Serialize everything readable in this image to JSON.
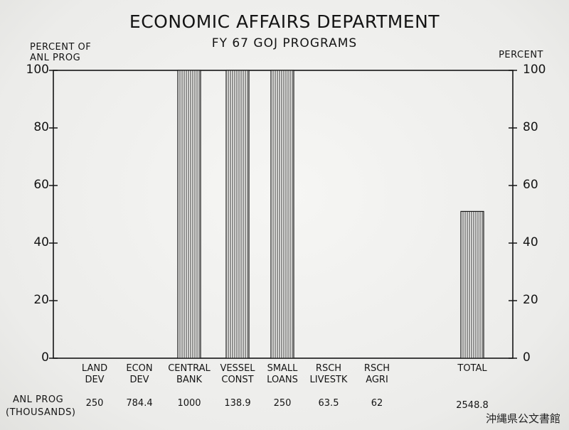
{
  "chart_data": {
    "type": "bar",
    "title": "ECONOMIC AFFAIRS DEPARTMENT",
    "subtitle": "FY 67 GOJ PROGRAMS",
    "ylabel_left": "PERCENT OF ANL PROG",
    "ylabel_right": "PERCENT",
    "ylim": [
      0,
      100
    ],
    "yticks": [
      "0",
      "20",
      "40",
      "60",
      "80",
      "100"
    ],
    "grid": false,
    "categories": [
      {
        "line1": "LAND",
        "line2": "DEV"
      },
      {
        "line1": "ECON",
        "line2": "DEV"
      },
      {
        "line1": "CENTRAL",
        "line2": "BANK"
      },
      {
        "line1": "VESSEL",
        "line2": "CONST"
      },
      {
        "line1": "SMALL",
        "line2": "LOANS"
      },
      {
        "line1": "RSCH",
        "line2": "LIVESTK"
      },
      {
        "line1": "RSCH",
        "line2": "AGRI"
      },
      {
        "line1": "TOTAL",
        "line2": ""
      }
    ],
    "values": [
      0,
      0,
      100,
      100,
      100,
      0,
      0,
      51
    ],
    "anl_prog_label": "ANL PROG",
    "anl_prog_unit": "(THOUSANDS)",
    "anl_prog_values": [
      "250",
      "784.4",
      "1000",
      "138.9",
      "250",
      "63.5",
      "62",
      "2548.8"
    ]
  },
  "stamp": "沖縄県公文書館"
}
